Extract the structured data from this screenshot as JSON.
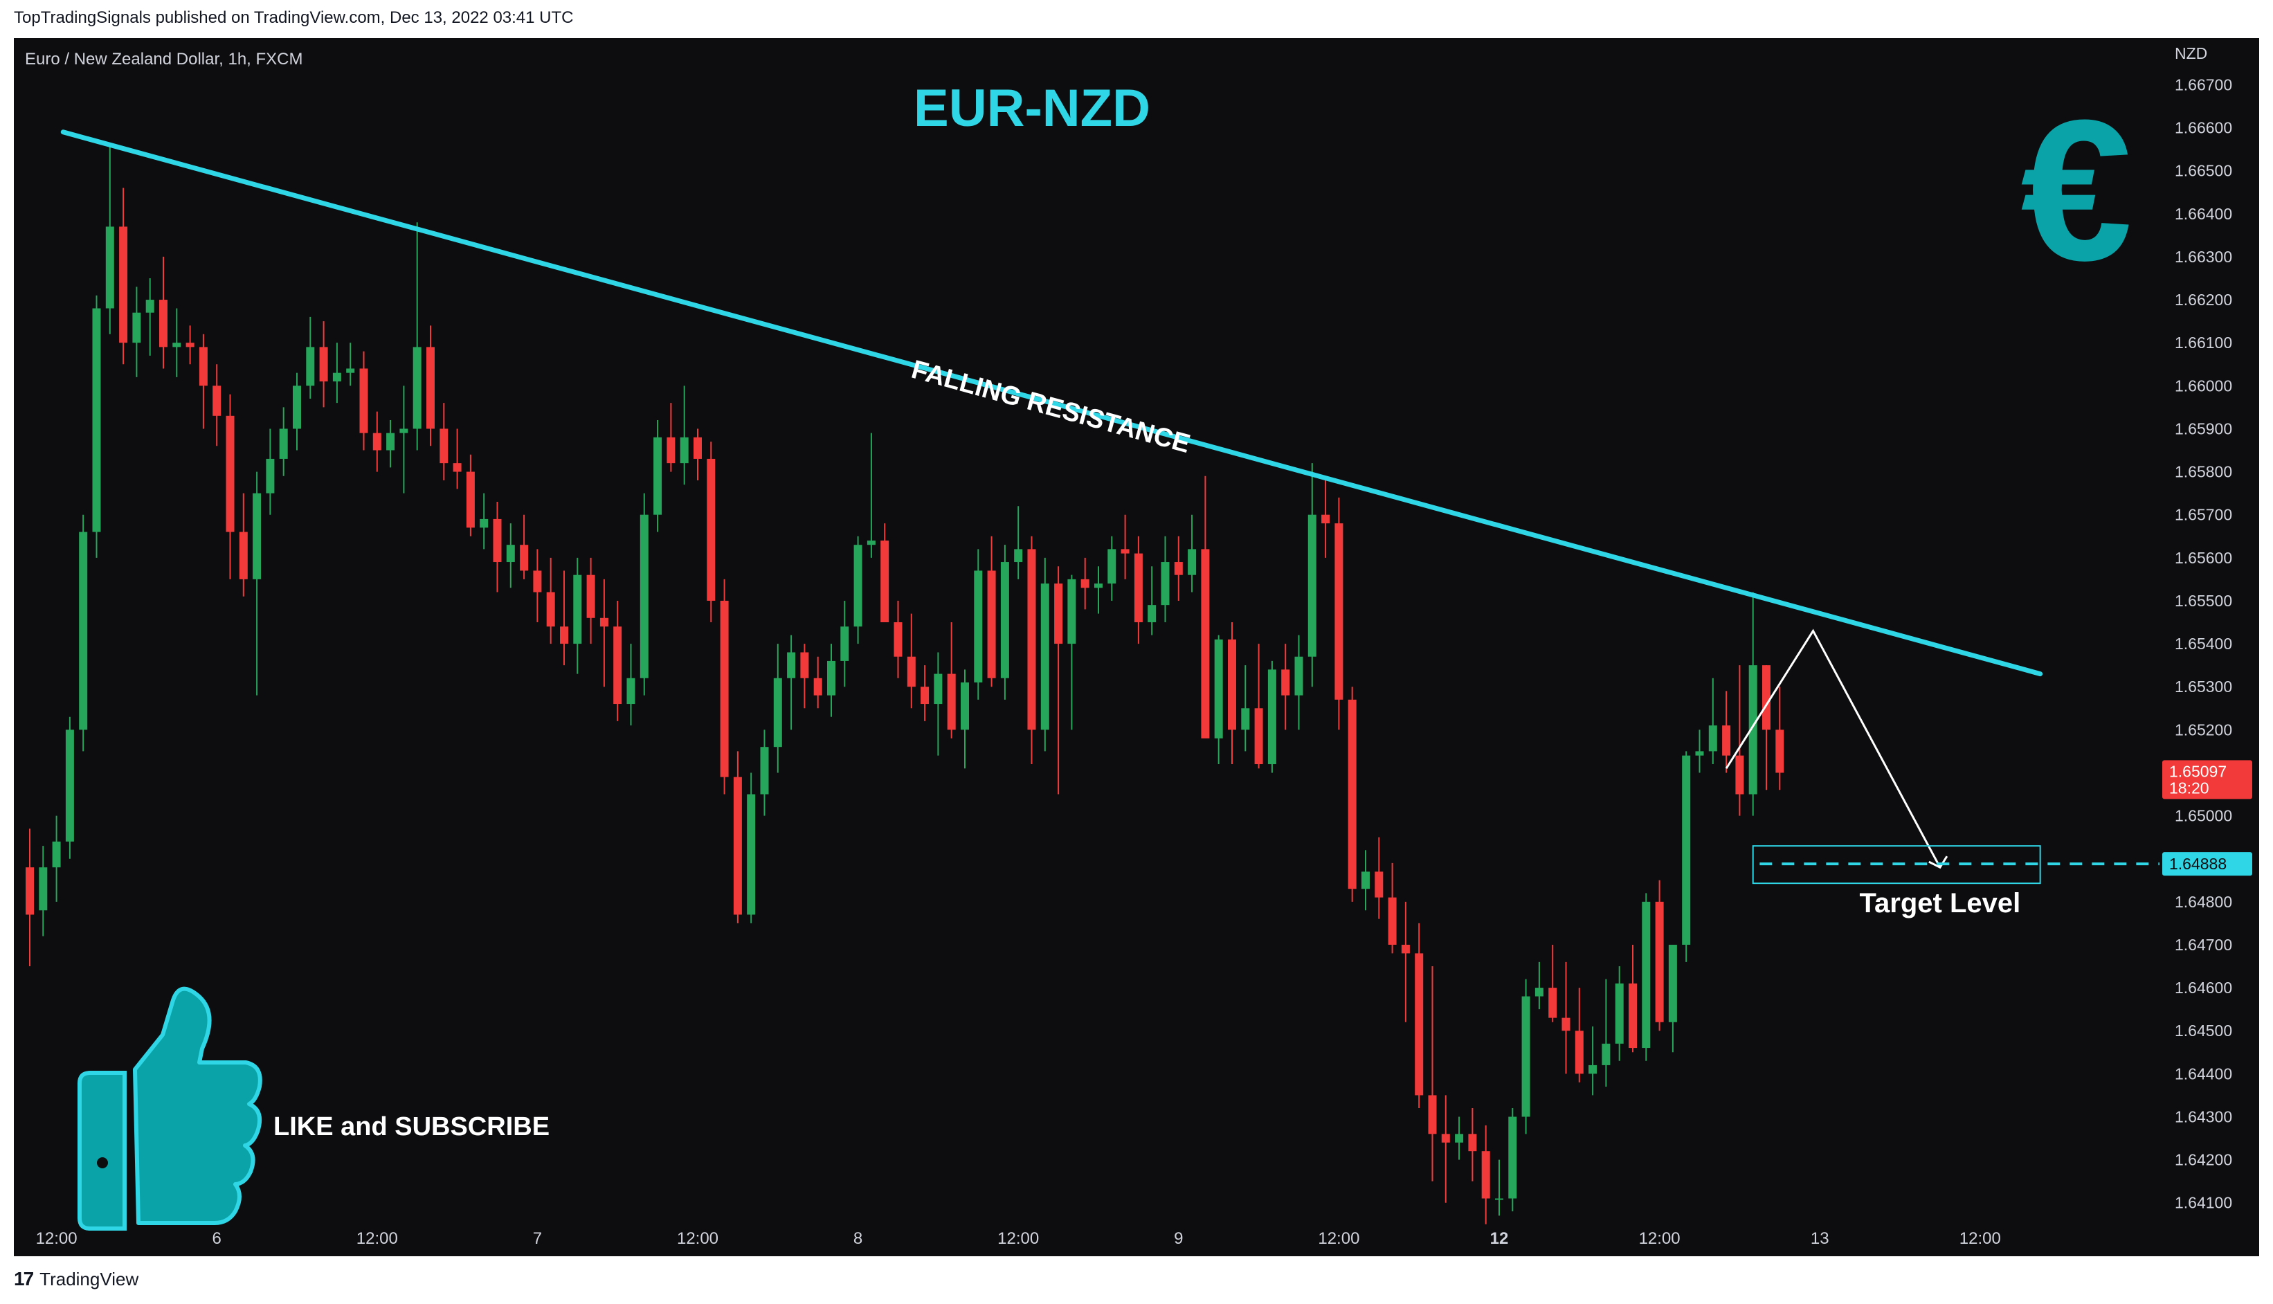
{
  "header": {
    "published_line": "TopTradingSignals published on TradingView.com, Dec 13, 2022 03:41 UTC",
    "symbol_line": "Euro / New Zealand Dollar, 1h, FXCM"
  },
  "footer": {
    "logo_mark": "17",
    "brand": "TradingView"
  },
  "annotations": {
    "title": "EUR-NZD",
    "trendline_label": "FALLING RESISTANCE",
    "target_label": "Target Level",
    "cta_text": "LIKE and SUBSCRIBE",
    "currency_symbol": "€"
  },
  "colors": {
    "background": "#0d0d10",
    "up_candle": "#26a65b",
    "down_candle": "#f23a3a",
    "accent_cyan": "#2fd6e6",
    "brand_teal": "#0aa3a8",
    "axis_text": "#d1d4dc"
  },
  "chart_data": {
    "type": "candlestick",
    "title": "EUR-NZD",
    "ylabel": "NZD",
    "ylim": [
      1.6404,
      1.6672
    ],
    "y_ticks": [
      "1.66700",
      "1.66600",
      "1.66500",
      "1.66400",
      "1.66300",
      "1.66200",
      "1.66100",
      "1.66000",
      "1.65900",
      "1.65800",
      "1.65700",
      "1.65600",
      "1.65500",
      "1.65400",
      "1.65300",
      "1.65200",
      "1.65100",
      "1.65000",
      "1.64900",
      "1.64800",
      "1.64700",
      "1.64600",
      "1.64500",
      "1.64400",
      "1.64300",
      "1.64200",
      "1.64100"
    ],
    "x_ticks": [
      {
        "label": "12:00",
        "bold": false,
        "bar": 2
      },
      {
        "label": "6",
        "bold": false,
        "bar": 14
      },
      {
        "label": "12:00",
        "bold": false,
        "bar": 26
      },
      {
        "label": "7",
        "bold": false,
        "bar": 38
      },
      {
        "label": "12:00",
        "bold": false,
        "bar": 50
      },
      {
        "label": "8",
        "bold": false,
        "bar": 62
      },
      {
        "label": "12:00",
        "bold": false,
        "bar": 74
      },
      {
        "label": "9",
        "bold": false,
        "bar": 86
      },
      {
        "label": "12:00",
        "bold": false,
        "bar": 98
      },
      {
        "label": "12",
        "bold": true,
        "bar": 110
      },
      {
        "label": "12:00",
        "bold": false,
        "bar": 122
      },
      {
        "label": "13",
        "bold": false,
        "bar": 134
      },
      {
        "label": "12:00",
        "bold": false,
        "bar": 146
      }
    ],
    "current_price": {
      "value": 1.65097,
      "label": "1.65097",
      "countdown": "18:20"
    },
    "target_level": {
      "value": 1.64888,
      "label": "1.64888"
    },
    "falling_resistance": {
      "start": {
        "bar": 2.5,
        "price": 1.6659
      },
      "end": {
        "bar": 150.5,
        "price": 1.6533
      }
    },
    "projection_path": [
      {
        "bar": 127,
        "price": 1.6511
      },
      {
        "bar": 133.5,
        "price": 1.6543
      },
      {
        "bar": 143,
        "price": 1.6488
      }
    ],
    "candles": [
      [
        1.6488,
        1.6497,
        1.6465,
        1.6477
      ],
      [
        1.6478,
        1.6493,
        1.6472,
        1.6488
      ],
      [
        1.6488,
        1.65,
        1.648,
        1.6494
      ],
      [
        1.6494,
        1.6523,
        1.649,
        1.652
      ],
      [
        1.652,
        1.657,
        1.6515,
        1.6566
      ],
      [
        1.6566,
        1.6621,
        1.656,
        1.6618
      ],
      [
        1.6618,
        1.6656,
        1.6612,
        1.6637
      ],
      [
        1.6637,
        1.6646,
        1.6605,
        1.661
      ],
      [
        1.661,
        1.6623,
        1.6602,
        1.6617
      ],
      [
        1.6617,
        1.6625,
        1.6607,
        1.662
      ],
      [
        1.662,
        1.663,
        1.6604,
        1.6609
      ],
      [
        1.6609,
        1.6618,
        1.6602,
        1.661
      ],
      [
        1.661,
        1.6614,
        1.6605,
        1.6609
      ],
      [
        1.6609,
        1.6612,
        1.659,
        1.66
      ],
      [
        1.66,
        1.6605,
        1.6586,
        1.6593
      ],
      [
        1.6593,
        1.6598,
        1.6555,
        1.6566
      ],
      [
        1.6566,
        1.6575,
        1.6551,
        1.6555
      ],
      [
        1.6555,
        1.658,
        1.6528,
        1.6575
      ],
      [
        1.6575,
        1.659,
        1.657,
        1.6583
      ],
      [
        1.6583,
        1.6595,
        1.6579,
        1.659
      ],
      [
        1.659,
        1.6603,
        1.6585,
        1.66
      ],
      [
        1.66,
        1.6616,
        1.6597,
        1.6609
      ],
      [
        1.6609,
        1.6615,
        1.6595,
        1.6601
      ],
      [
        1.6601,
        1.661,
        1.6596,
        1.6603
      ],
      [
        1.6603,
        1.661,
        1.66,
        1.6604
      ],
      [
        1.6604,
        1.6608,
        1.6585,
        1.6589
      ],
      [
        1.6589,
        1.6594,
        1.658,
        1.6585
      ],
      [
        1.6585,
        1.6592,
        1.6581,
        1.6589
      ],
      [
        1.6589,
        1.66,
        1.6575,
        1.659
      ],
      [
        1.659,
        1.6638,
        1.6585,
        1.6609
      ],
      [
        1.6609,
        1.6614,
        1.6586,
        1.659
      ],
      [
        1.659,
        1.6596,
        1.6578,
        1.6582
      ],
      [
        1.6582,
        1.659,
        1.6576,
        1.658
      ],
      [
        1.658,
        1.6584,
        1.6565,
        1.6567
      ],
      [
        1.6567,
        1.6575,
        1.6562,
        1.6569
      ],
      [
        1.6569,
        1.6573,
        1.6552,
        1.6559
      ],
      [
        1.6559,
        1.6568,
        1.6553,
        1.6563
      ],
      [
        1.6563,
        1.657,
        1.6555,
        1.6557
      ],
      [
        1.6557,
        1.6562,
        1.6545,
        1.6552
      ],
      [
        1.6552,
        1.656,
        1.654,
        1.6544
      ],
      [
        1.6544,
        1.6557,
        1.6535,
        1.654
      ],
      [
        1.654,
        1.656,
        1.6533,
        1.6556
      ],
      [
        1.6556,
        1.656,
        1.654,
        1.6546
      ],
      [
        1.6546,
        1.6555,
        1.653,
        1.6544
      ],
      [
        1.6544,
        1.655,
        1.6522,
        1.6526
      ],
      [
        1.6526,
        1.654,
        1.6521,
        1.6532
      ],
      [
        1.6532,
        1.6575,
        1.6528,
        1.657
      ],
      [
        1.657,
        1.6592,
        1.6566,
        1.6588
      ],
      [
        1.6588,
        1.6596,
        1.658,
        1.6582
      ],
      [
        1.6582,
        1.66,
        1.6577,
        1.6588
      ],
      [
        1.6588,
        1.659,
        1.6578,
        1.6583
      ],
      [
        1.6583,
        1.6587,
        1.6545,
        1.655
      ],
      [
        1.655,
        1.6555,
        1.6505,
        1.6509
      ],
      [
        1.6509,
        1.6515,
        1.6475,
        1.6477
      ],
      [
        1.6477,
        1.651,
        1.6475,
        1.6505
      ],
      [
        1.6505,
        1.652,
        1.65,
        1.6516
      ],
      [
        1.6516,
        1.654,
        1.651,
        1.6532
      ],
      [
        1.6532,
        1.6542,
        1.652,
        1.6538
      ],
      [
        1.6538,
        1.654,
        1.6525,
        1.6532
      ],
      [
        1.6532,
        1.6537,
        1.6525,
        1.6528
      ],
      [
        1.6528,
        1.654,
        1.6523,
        1.6536
      ],
      [
        1.6536,
        1.655,
        1.653,
        1.6544
      ],
      [
        1.6544,
        1.6565,
        1.654,
        1.6563
      ],
      [
        1.6563,
        1.6589,
        1.656,
        1.6564
      ],
      [
        1.6564,
        1.6568,
        1.6545,
        1.6545
      ],
      [
        1.6545,
        1.655,
        1.6532,
        1.6537
      ],
      [
        1.6537,
        1.6547,
        1.6525,
        1.653
      ],
      [
        1.653,
        1.6535,
        1.6522,
        1.6526
      ],
      [
        1.6526,
        1.6538,
        1.6514,
        1.6533
      ],
      [
        1.6533,
        1.6545,
        1.6518,
        1.652
      ],
      [
        1.652,
        1.6534,
        1.6511,
        1.6531
      ],
      [
        1.6531,
        1.6562,
        1.6527,
        1.6557
      ],
      [
        1.6557,
        1.6565,
        1.653,
        1.6532
      ],
      [
        1.6532,
        1.6563,
        1.6527,
        1.6559
      ],
      [
        1.6559,
        1.6572,
        1.6555,
        1.6562
      ],
      [
        1.6562,
        1.6565,
        1.6512,
        1.652
      ],
      [
        1.652,
        1.656,
        1.6515,
        1.6554
      ],
      [
        1.6554,
        1.6558,
        1.6505,
        1.654
      ],
      [
        1.654,
        1.6556,
        1.652,
        1.6555
      ],
      [
        1.6555,
        1.656,
        1.6548,
        1.6553
      ],
      [
        1.6553,
        1.6558,
        1.6547,
        1.6554
      ],
      [
        1.6554,
        1.6565,
        1.655,
        1.6562
      ],
      [
        1.6562,
        1.657,
        1.6555,
        1.6561
      ],
      [
        1.6561,
        1.6565,
        1.654,
        1.6545
      ],
      [
        1.6545,
        1.6558,
        1.6542,
        1.6549
      ],
      [
        1.6549,
        1.6565,
        1.6545,
        1.6559
      ],
      [
        1.6559,
        1.6565,
        1.655,
        1.6556
      ],
      [
        1.6556,
        1.657,
        1.6552,
        1.6562
      ],
      [
        1.6562,
        1.6579,
        1.652,
        1.6518
      ],
      [
        1.6518,
        1.6542,
        1.6512,
        1.6541
      ],
      [
        1.6541,
        1.6545,
        1.6512,
        1.652
      ],
      [
        1.652,
        1.6535,
        1.6515,
        1.6525
      ],
      [
        1.6525,
        1.654,
        1.6511,
        1.6512
      ],
      [
        1.6512,
        1.6536,
        1.651,
        1.6534
      ],
      [
        1.6534,
        1.654,
        1.652,
        1.6528
      ],
      [
        1.6528,
        1.6542,
        1.652,
        1.6537
      ],
      [
        1.6537,
        1.6582,
        1.653,
        1.657
      ],
      [
        1.657,
        1.6578,
        1.656,
        1.6568
      ],
      [
        1.6568,
        1.6574,
        1.652,
        1.6527
      ],
      [
        1.6527,
        1.653,
        1.648,
        1.6483
      ],
      [
        1.6483,
        1.6492,
        1.6478,
        1.6487
      ],
      [
        1.6487,
        1.6495,
        1.6476,
        1.6481
      ],
      [
        1.6481,
        1.6489,
        1.6468,
        1.647
      ],
      [
        1.647,
        1.648,
        1.6452,
        1.6468
      ],
      [
        1.6468,
        1.6475,
        1.6432,
        1.6435
      ],
      [
        1.6435,
        1.6465,
        1.6415,
        1.6426
      ],
      [
        1.6426,
        1.6435,
        1.641,
        1.6424
      ],
      [
        1.6424,
        1.643,
        1.642,
        1.6426
      ],
      [
        1.6426,
        1.6432,
        1.6415,
        1.6422
      ],
      [
        1.6422,
        1.6428,
        1.6405,
        1.6411
      ],
      [
        1.6411,
        1.642,
        1.6407,
        1.6411
      ],
      [
        1.6411,
        1.6432,
        1.6408,
        1.643
      ],
      [
        1.643,
        1.6462,
        1.6426,
        1.6458
      ],
      [
        1.6458,
        1.6466,
        1.6455,
        1.646
      ],
      [
        1.646,
        1.647,
        1.6452,
        1.6453
      ],
      [
        1.6453,
        1.6466,
        1.644,
        1.645
      ],
      [
        1.645,
        1.646,
        1.6438,
        1.644
      ],
      [
        1.644,
        1.6451,
        1.6435,
        1.6442
      ],
      [
        1.6442,
        1.6462,
        1.6437,
        1.6447
      ],
      [
        1.6447,
        1.6465,
        1.6443,
        1.6461
      ],
      [
        1.6461,
        1.647,
        1.6445,
        1.6446
      ],
      [
        1.6446,
        1.6482,
        1.6443,
        1.648
      ],
      [
        1.648,
        1.6485,
        1.645,
        1.6452
      ],
      [
        1.6452,
        1.647,
        1.6445,
        1.647
      ],
      [
        1.647,
        1.6515,
        1.6466,
        1.6514
      ],
      [
        1.6514,
        1.652,
        1.651,
        1.6515
      ],
      [
        1.6515,
        1.6532,
        1.6512,
        1.6521
      ],
      [
        1.6521,
        1.6529,
        1.651,
        1.6514
      ],
      [
        1.6514,
        1.6535,
        1.65,
        1.6505
      ],
      [
        1.6505,
        1.6552,
        1.65,
        1.6535
      ],
      [
        1.6535,
        1.6535,
        1.6506,
        1.652
      ],
      [
        1.652,
        1.653,
        1.6506,
        1.651
      ]
    ]
  }
}
